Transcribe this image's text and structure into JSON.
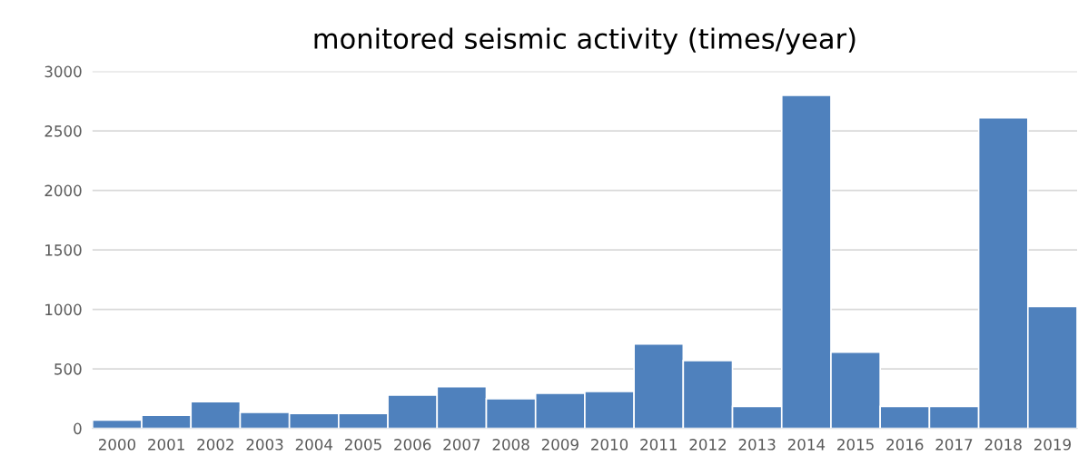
{
  "chart_data": {
    "type": "bar",
    "title": "monitored seismic activity (times/year)",
    "categories": [
      "2000",
      "2001",
      "2002",
      "2003",
      "2004",
      "2005",
      "2006",
      "2007",
      "2008",
      "2009",
      "2010",
      "2011",
      "2012",
      "2013",
      "2014",
      "2015",
      "2016",
      "2017",
      "2018",
      "2019"
    ],
    "values": [
      70,
      110,
      225,
      135,
      125,
      125,
      280,
      350,
      250,
      295,
      310,
      710,
      570,
      185,
      2800,
      640,
      185,
      185,
      2610,
      1025
    ],
    "color": "#4f81bd",
    "ylim": [
      0,
      3000
    ],
    "yticks": [
      0,
      500,
      1000,
      1500,
      2000,
      2500,
      3000
    ],
    "grid": "y"
  }
}
